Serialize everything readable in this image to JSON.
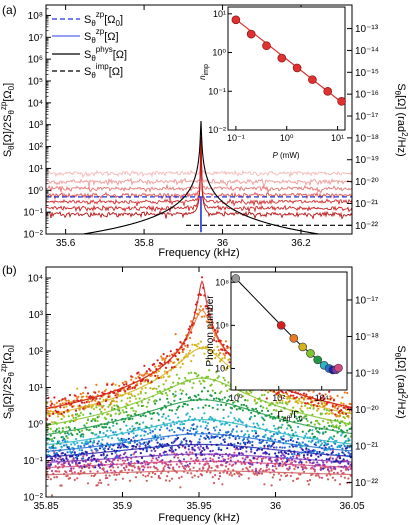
{
  "chart_data": [
    {
      "panel": "a",
      "panel_label": "(a)",
      "type": "line",
      "xlabel": "Frequency (kHz)",
      "ylabel_left": "S_θ[Ω]/2S_θ^zp[Ω_0]",
      "ylabel_right": "S_θ[Ω] (rad²/Hz)",
      "xlim": [
        35.55,
        36.33
      ],
      "ylim": [
        0.01,
        300000000
      ],
      "yscale": "log",
      "x_ticks": [
        35.6,
        35.8,
        36,
        36.2
      ],
      "x_tick_labels": [
        "35.6",
        "35.8",
        "36",
        "36.2"
      ],
      "y_tick_labels": [
        "10⁻²",
        "10⁻¹",
        "10⁰",
        "10¹",
        "10²",
        "10³",
        "10⁴",
        "10⁵",
        "10⁶",
        "10⁷",
        "10⁸"
      ],
      "y_tick_values": [
        0.01,
        0.1,
        1,
        10,
        100,
        1000,
        10000,
        100000,
        1000000,
        10000000,
        100000000
      ],
      "right_tick_labels": [
        "10⁻²²",
        "10⁻²¹",
        "10⁻²⁰",
        "10⁻¹⁹",
        "10⁻¹⁸",
        "10⁻¹⁷",
        "10⁻¹⁶",
        "10⁻¹⁵",
        "10⁻¹⁴",
        "10⁻¹³"
      ],
      "right_tick_values": [
        0.025,
        0.25,
        2.5,
        25,
        250,
        2500,
        25000,
        250000,
        2500000,
        25000000
      ],
      "legend": [
        {
          "label": "S_θ^zp[Ω_0]",
          "style": "dashed",
          "color": "#2233dd"
        },
        {
          "label": "S_θ^zp[Ω]",
          "style": "solid",
          "color": "#5566ee"
        },
        {
          "label": "S_θ^phys[Ω]",
          "style": "solid",
          "color": "#000000"
        },
        {
          "label": "S_θ^imp[Ω]",
          "style": "dashed",
          "color": "#000000"
        }
      ],
      "center_frequency_khz": 35.945,
      "zp_level": 0.5,
      "imp_level": 0.025,
      "noise_floor_series": [
        {
          "floor": 0.08,
          "color": "#b81414"
        },
        {
          "floor": 0.15,
          "color": "#cc2222"
        },
        {
          "floor": 0.3,
          "color": "#d63535"
        },
        {
          "floor": 0.6,
          "color": "#e05555"
        },
        {
          "floor": 1.2,
          "color": "#e87878"
        },
        {
          "floor": 2.5,
          "color": "#f09a9a"
        },
        {
          "floor": 6,
          "color": "#f6baba"
        }
      ],
      "inset": {
        "type": "scatter",
        "xlabel": "P (mW)",
        "ylabel": "n_imp",
        "xscale": "log",
        "yscale": "log",
        "xlim": [
          0.07,
          14
        ],
        "ylim": [
          0.01,
          15
        ],
        "x_tick_labels": [
          "10⁻¹",
          "10⁰",
          "10¹"
        ],
        "x_tick_values": [
          0.1,
          1,
          10
        ],
        "y_tick_labels": [
          "10⁻²",
          "10⁻¹",
          "10⁰",
          "10¹"
        ],
        "y_tick_values": [
          0.01,
          0.1,
          1,
          10
        ],
        "points": [
          {
            "x": 0.1,
            "y": 7.0
          },
          {
            "x": 0.2,
            "y": 3.0
          },
          {
            "x": 0.4,
            "y": 1.5
          },
          {
            "x": 0.8,
            "y": 0.72
          },
          {
            "x": 1.6,
            "y": 0.4
          },
          {
            "x": 3.2,
            "y": 0.2
          },
          {
            "x": 6.4,
            "y": 0.1
          },
          {
            "x": 12,
            "y": 0.055
          }
        ],
        "fit": [
          {
            "x": 0.09,
            "y": 8.0
          },
          {
            "x": 13,
            "y": 0.048
          }
        ],
        "color": "#e03030"
      }
    },
    {
      "panel": "b",
      "panel_label": "(b)",
      "type": "scatter",
      "xlabel": "Frequency (kHz)",
      "ylabel_left": "S_θ[Ω]/2S_θ^zp[Ω_0]",
      "ylabel_right": "S_θ[Ω] (rad²/Hz)",
      "xlim": [
        35.85,
        36.05
      ],
      "ylim": [
        0.01,
        20000
      ],
      "yscale": "log",
      "x_ticks": [
        35.85,
        35.9,
        35.95,
        36,
        36.05
      ],
      "x_tick_labels": [
        "35.85",
        "35.9",
        "35.95",
        "36",
        "36.05"
      ],
      "y_tick_labels": [
        "10⁻²",
        "10⁻¹",
        "10⁰",
        "10¹",
        "10²",
        "10³",
        "10⁴"
      ],
      "y_tick_values": [
        0.01,
        0.1,
        1,
        10,
        100,
        1000,
        10000
      ],
      "right_tick_labels": [
        "10⁻²²",
        "10⁻²¹",
        "10⁻²⁰",
        "10⁻¹⁹",
        "10⁻¹⁸",
        "10⁻¹⁷"
      ],
      "right_tick_values": [
        0.025,
        0.25,
        2.5,
        25,
        250,
        2500
      ],
      "center_frequency_khz": 35.952,
      "series": [
        {
          "color": "#d62020",
          "peak": 8000,
          "width_khz": 0.0018,
          "floor": 0.14
        },
        {
          "color": "#ee7a20",
          "peak": 1300,
          "width_khz": 0.0045,
          "floor": 0.13
        },
        {
          "color": "#d4b41a",
          "peak": 120,
          "width_khz": 0.012,
          "floor": 0.12
        },
        {
          "color": "#7bc42a",
          "peak": 18,
          "width_khz": 0.022,
          "floor": 0.12
        },
        {
          "color": "#1c9a46",
          "peak": 4.5,
          "width_khz": 0.032,
          "floor": 0.11
        },
        {
          "color": "#2ab5c8",
          "peak": 1.2,
          "width_khz": 0.04,
          "floor": 0.11
        },
        {
          "color": "#2270d6",
          "peak": 0.45,
          "width_khz": 0.05,
          "floor": 0.09
        },
        {
          "color": "#1c1ea8",
          "peak": 0.2,
          "width_khz": 0.06,
          "floor": 0.075
        },
        {
          "color": "#7a36bc",
          "peak": 0.09,
          "width_khz": 0.07,
          "floor": 0.06
        },
        {
          "color": "#d14a82",
          "peak": 0.05,
          "width_khz": 0.08,
          "floor": 0.045
        },
        {
          "color": "#d05c5c",
          "peak": 0.02,
          "width_khz": 0.09,
          "floor": 0.032
        }
      ],
      "inset": {
        "type": "scatter",
        "xlabel": "Γ_eff/Γ_0",
        "ylabel": "Phonon number",
        "xscale": "log",
        "yscale": "log",
        "xlim": [
          0.6,
          150000
        ],
        "ylim": [
          1000,
          300000000
        ],
        "x_tick_labels": [
          "10⁰",
          "10²",
          "10⁴"
        ],
        "x_tick_values": [
          1,
          100,
          10000
        ],
        "y_tick_labels": [
          "10⁴",
          "10⁶",
          "10⁸"
        ],
        "y_tick_values": [
          10000,
          1000000,
          100000000
        ],
        "points": [
          {
            "x": 1,
            "y": 150000000,
            "color": "#999999"
          },
          {
            "x": 130,
            "y": 1000000,
            "color": "#d62020"
          },
          {
            "x": 500,
            "y": 250000,
            "color": "#ee7a20"
          },
          {
            "x": 1300,
            "y": 100000,
            "color": "#d4b41a"
          },
          {
            "x": 3000,
            "y": 50000,
            "color": "#7bc42a"
          },
          {
            "x": 6500,
            "y": 25000,
            "color": "#1c9a46"
          },
          {
            "x": 13000,
            "y": 14000,
            "color": "#2ab5c8"
          },
          {
            "x": 22000,
            "y": 10000,
            "color": "#2270d6"
          },
          {
            "x": 33000,
            "y": 8500,
            "color": "#1c1ea8"
          },
          {
            "x": 46000,
            "y": 8800,
            "color": "#7a36bc"
          },
          {
            "x": 60000,
            "y": 10500,
            "color": "#d14a82"
          }
        ]
      }
    }
  ]
}
